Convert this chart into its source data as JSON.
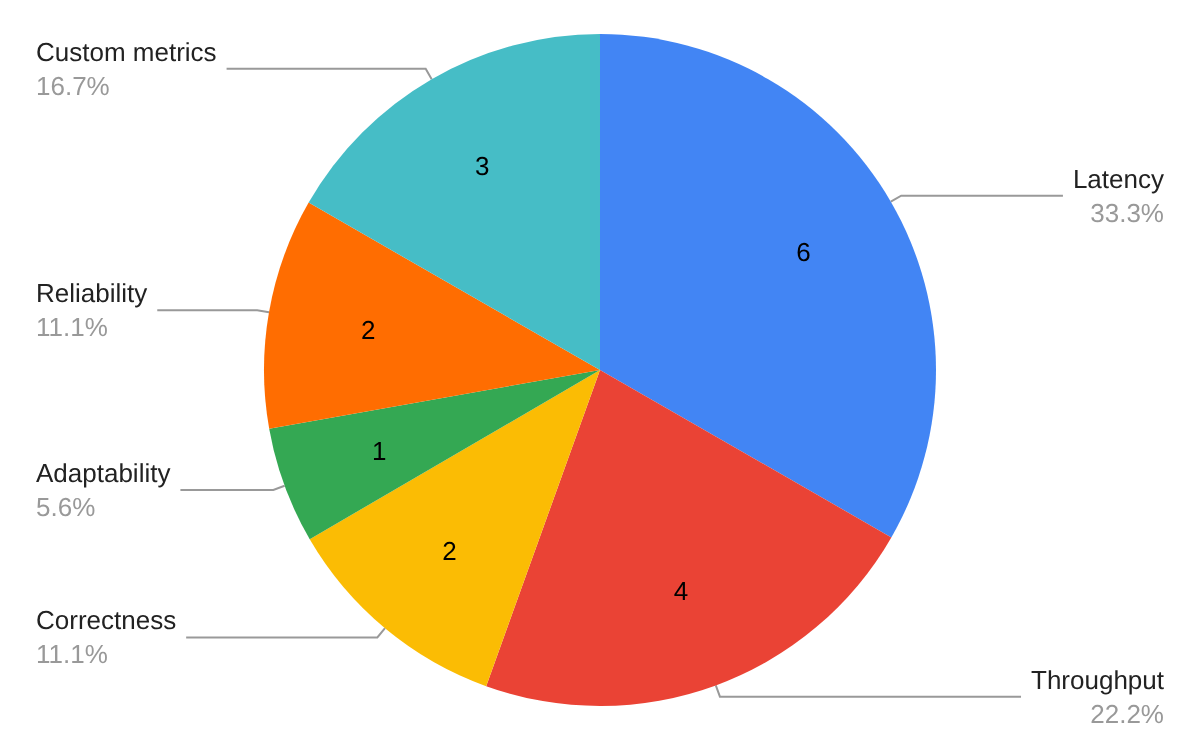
{
  "chart_data": {
    "type": "pie",
    "categories": [
      "Latency",
      "Throughput",
      "Correctness",
      "Adaptability",
      "Reliability",
      "Custom metrics"
    ],
    "values": [
      33.3,
      22.2,
      11.1,
      5.6,
      11.1,
      16.7
    ],
    "colors": [
      "#4285f4",
      "#ea4335",
      "#fbbc04",
      "#34a853",
      "#ff6d01",
      "#46bdc6"
    ],
    "value_labels": [
      "33.3%",
      "22.2%",
      "11.1%",
      "5.6%",
      "11.1%",
      "16.7%"
    ],
    "annotations": [
      "6",
      "4",
      "2",
      "1",
      "2",
      "3"
    ],
    "legend": false
  }
}
